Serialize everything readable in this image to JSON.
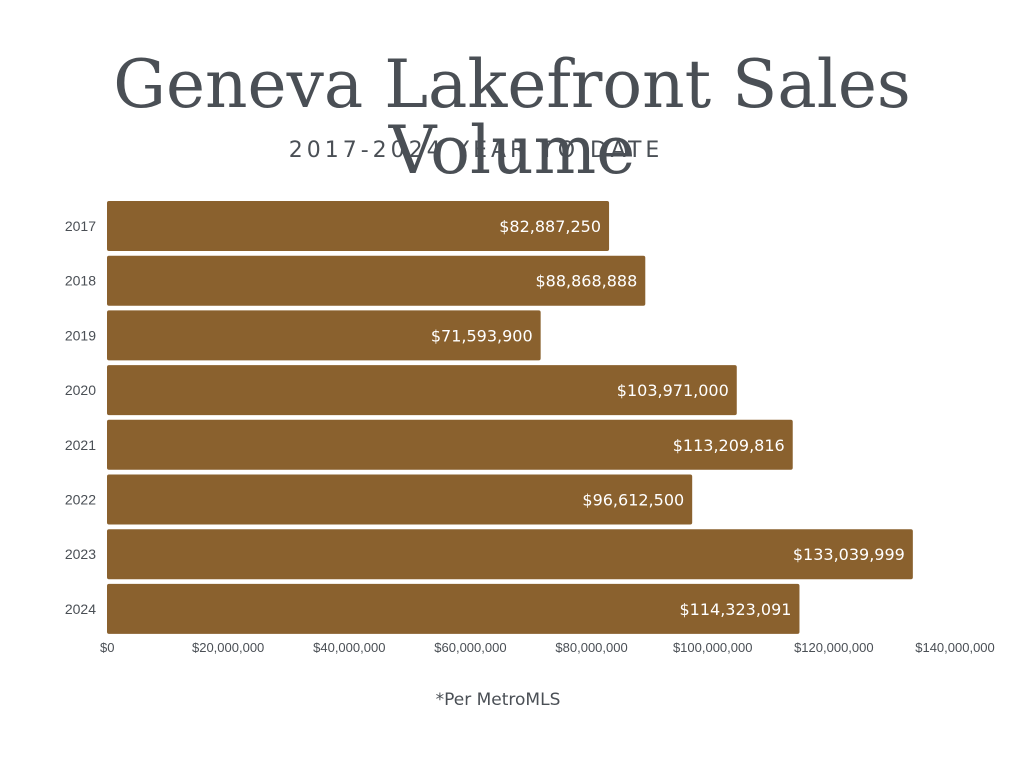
{
  "title": "Geneva Lakefront Sales Volume",
  "subtitle": "2017-2024 YEAR TO DATE",
  "footnote": "*Per MetroMLS",
  "colors": {
    "bar": "#8a612e",
    "bar_label": "#ffffff",
    "text": "#4a4f55"
  },
  "chart_data": {
    "type": "bar",
    "orientation": "horizontal",
    "categories": [
      "2017",
      "2018",
      "2019",
      "2020",
      "2021",
      "2022",
      "2023",
      "2024"
    ],
    "values": [
      82887250,
      88868888,
      71593900,
      103971000,
      113209816,
      96612500,
      133039999,
      114323091
    ],
    "data_labels": [
      "$82,887,250",
      "$88,868,888",
      "$71,593,900",
      "$103,971,000",
      "$113,209,816",
      "$96,612,500",
      "$133,039,999",
      "$114,323,091"
    ],
    "x_ticks": [
      0,
      20000000,
      40000000,
      60000000,
      80000000,
      100000000,
      120000000,
      140000000
    ],
    "x_tick_labels": [
      "$0",
      "$20,000,000",
      "$40,000,000",
      "$60,000,000",
      "$80,000,000",
      "$100,000,000",
      "$120,000,000",
      "$140,000,000"
    ],
    "xlim": [
      0,
      140000000
    ],
    "grid": false,
    "legend": "none"
  }
}
